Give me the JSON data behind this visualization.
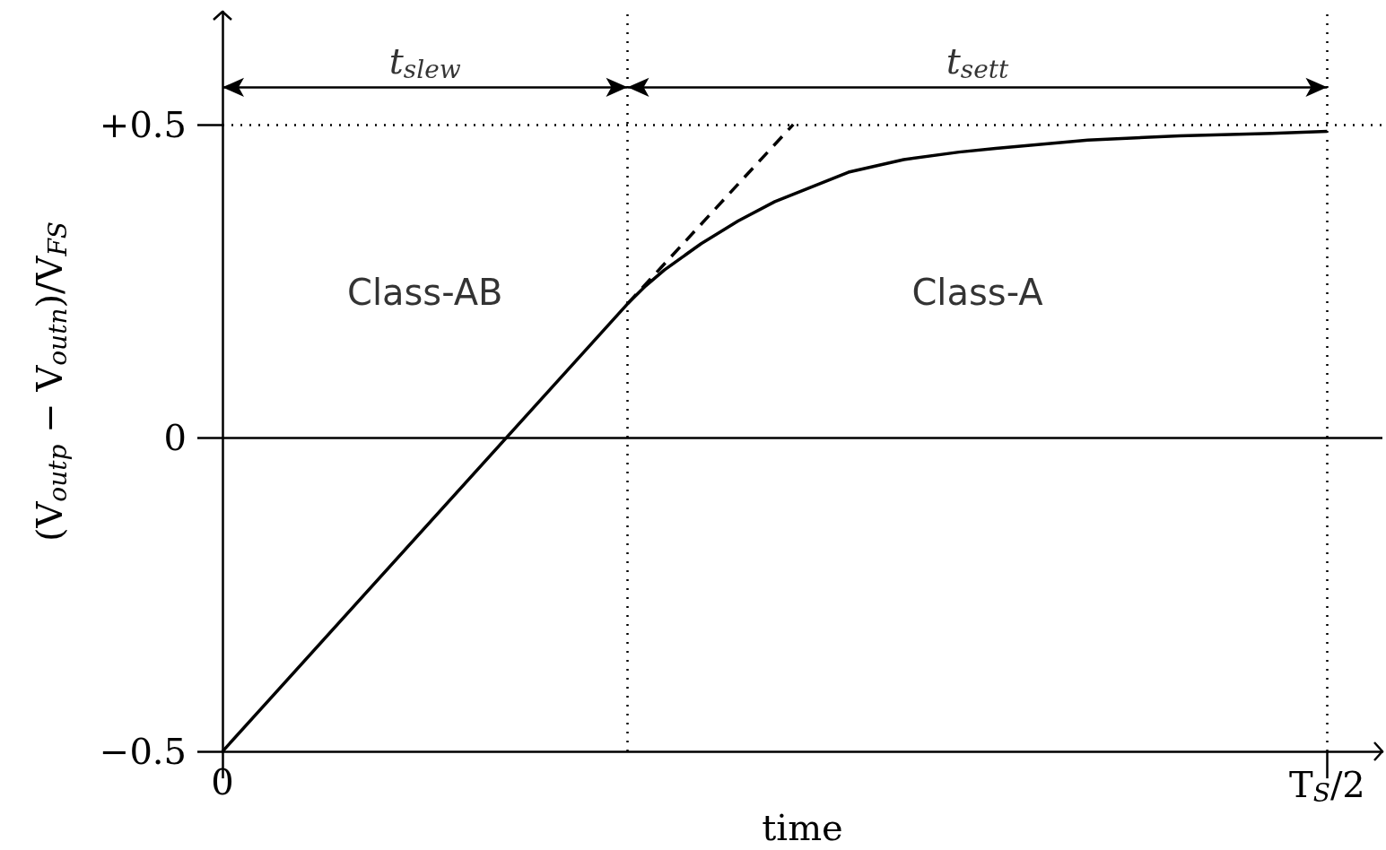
{
  "chart_data": {
    "type": "line",
    "xlabel": "time",
    "ylabel": "(V$_{outp}$ − V$_{outn}$)/V$_{FS}$",
    "categories": [
      "0",
      null,
      null,
      null,
      null,
      null,
      null,
      null,
      null,
      null,
      null,
      null,
      null,
      null,
      null,
      null,
      null,
      null,
      null,
      null,
      null,
      null,
      null,
      null,
      null,
      null,
      null,
      null,
      null,
      null,
      null,
      null,
      null,
      null,
      null,
      null,
      null,
      null,
      null,
      null,
      null,
      null,
      null,
      null,
      null,
      null,
      null,
      null,
      null,
      null,
      null,
      null,
      null,
      null,
      null,
      null,
      null,
      null,
      null,
      null,
      "T$_{S}$/2",
      null,
      null,
      null
    ],
    "series": [
      {
        "color": "#000000",
        "line_style": "solid",
        "values": [
          -0.5,
          null,
          null,
          null,
          null,
          null,
          null,
          null,
          null,
          null,
          null,
          null,
          null,
          null,
          null,
          null,
          null,
          null,
          null,
          null,
          null,
          null,
          0.214,
          0.243,
          0.268,
          null,
          0.31,
          null,
          0.346,
          null,
          0.377,
          null,
          null,
          null,
          0.424,
          null,
          null,
          0.444,
          null,
          null,
          0.456,
          null,
          0.462,
          null,
          null,
          null,
          null,
          0.475,
          null,
          null,
          null,
          null,
          0.482,
          null,
          null,
          null,
          null,
          0.486,
          null,
          null,
          0.489,
          null,
          null,
          null
        ]
      },
      {
        "color": "#000000",
        "line_style": "dashed",
        "values": [
          null,
          null,
          null,
          null,
          null,
          null,
          null,
          null,
          null,
          null,
          null,
          null,
          null,
          null,
          null,
          null,
          null,
          null,
          null,
          null,
          null,
          null,
          0.214,
          null,
          null,
          null,
          null,
          null,
          null,
          null,
          null,
          0.5,
          null,
          null,
          null,
          null,
          null,
          null,
          null,
          null,
          null,
          null,
          null,
          null,
          null,
          null,
          null,
          null,
          null,
          null,
          null,
          null,
          null,
          null,
          null,
          null,
          null,
          null,
          null,
          null,
          null,
          null,
          null,
          null
        ]
      }
    ],
    "ylim": [
      -0.5,
      0.68
    ],
    "yticks": [
      {
        "value": -0.5,
        "label": "−0.5"
      },
      0,
      {
        "value": 0.5,
        "label": "+0.5"
      }
    ],
    "marker": "none",
    "ref_lines": [
      {
        "axis": "y",
        "value": 0.5,
        "line_style": "dotted"
      },
      {
        "axis": "y",
        "value": 0,
        "line_style": "solid"
      }
    ],
    "annotations": [
      "t$_{slew}$",
      "t$_{sett}$",
      "Class-AB",
      "Class-A"
    ]
  }
}
